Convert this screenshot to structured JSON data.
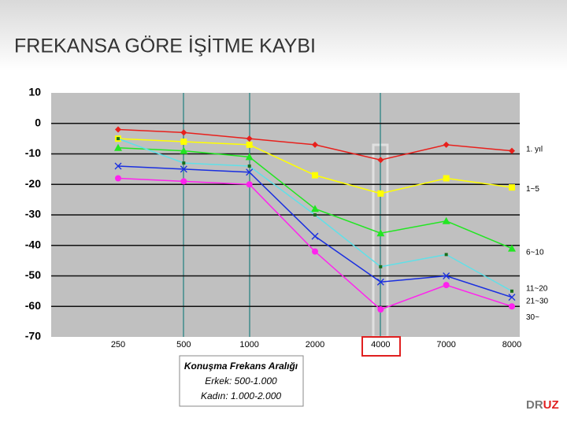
{
  "title": "FREKANSA GÖRE İŞİTME KAYBI",
  "chart_data": {
    "type": "line",
    "categories": [
      "250",
      "500",
      "1000",
      "2000",
      "4000",
      "7000",
      "8000"
    ],
    "ylim": [
      -70,
      10
    ],
    "yticks": [
      10,
      0,
      -10,
      -20,
      -30,
      -40,
      -50,
      -60,
      -70
    ],
    "grid": true,
    "series": [
      {
        "name": "1. yıl",
        "color": "#e8201c",
        "marker": "diamond",
        "values": [
          -2,
          -3,
          -5,
          -7,
          -12,
          -7,
          -9
        ]
      },
      {
        "name": "1~5",
        "color": "#ffff00",
        "marker": "square",
        "values": [
          -5,
          -6,
          -7,
          -17,
          -23,
          -18,
          -21
        ]
      },
      {
        "name": "6~10",
        "color": "#22e622",
        "marker": "triangle",
        "values": [
          -8,
          -9,
          -11,
          -28,
          -36,
          -32,
          -41
        ]
      },
      {
        "name": "11~20",
        "color": "#5fe0e8",
        "marker": "small-square",
        "values": [
          -5,
          -13,
          -14,
          -30,
          -47,
          -43,
          -55
        ]
      },
      {
        "name": "21~30",
        "color": "#1a2fe0",
        "marker": "x",
        "values": [
          -14,
          -15,
          -16,
          -37,
          -52,
          -50,
          -57
        ]
      },
      {
        "name": "30~",
        "color": "#ff22ee",
        "marker": "circle",
        "values": [
          -18,
          -19,
          -20,
          -42,
          -61,
          -53,
          -60
        ]
      }
    ],
    "annotations": [
      "Konuşma Frekans Aralığı",
      "Erkek: 500-1.000",
      "Kadın: 1.000-2.000"
    ]
  },
  "logo": [
    "DR",
    "UZ"
  ]
}
